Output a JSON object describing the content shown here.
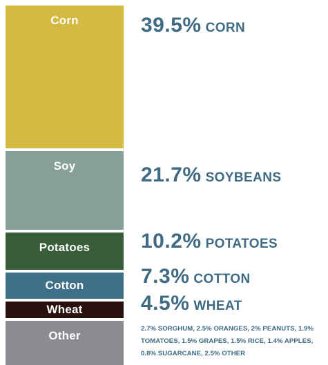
{
  "chart_data": {
    "type": "bar",
    "orientation": "stacked-column",
    "categories": [
      "Corn",
      "Soy",
      "Potatoes",
      "Cotton",
      "Wheat",
      "Other"
    ],
    "values": [
      39.5,
      21.7,
      10.2,
      7.3,
      4.5,
      17.0
    ],
    "share_labels": [
      {
        "pct": "39.5%",
        "name": "CORN"
      },
      {
        "pct": "21.7%",
        "name": "SOYBEANS"
      },
      {
        "pct": "10.2%",
        "name": "POTATOES"
      },
      {
        "pct": "7.3%",
        "name": "COTTON"
      },
      {
        "pct": "4.5%",
        "name": "WHEAT"
      }
    ],
    "other_breakdown": "2.7% SORGHUM, 2.5% ORANGES,  2% PEANUTS, 1.9% TOMATOES, 1.5% GRAPES, 1.5% RICE, 1.4% APPLES, 0.8% SUGARCANE, 2.5% OTHER",
    "colors": {
      "Corn": "#d4b942",
      "Soy": "#87a199",
      "Potatoes": "#385d39",
      "Cotton": "#3e7089",
      "Wheat": "#2a110e",
      "Other": "#8a8c90",
      "text_accent": "#3e6b83"
    }
  }
}
